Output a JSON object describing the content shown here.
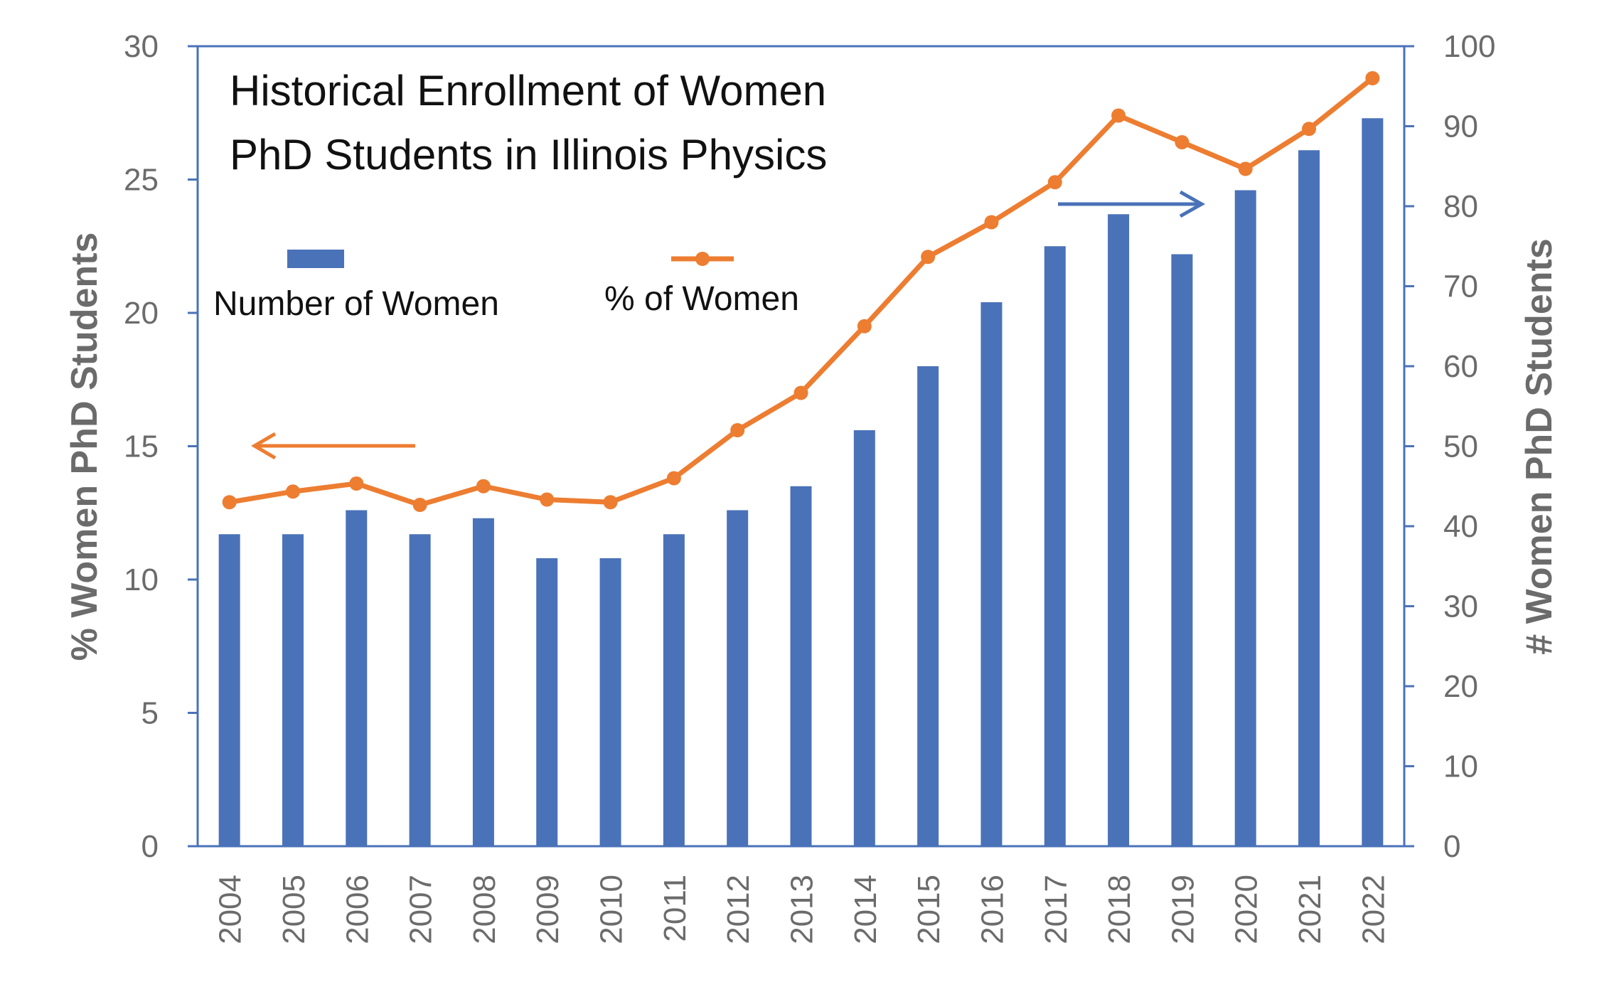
{
  "chart_data": {
    "type": "bar",
    "title_lines": [
      "Historical Enrollment of Women",
      "PhD Students in Illinois Physics"
    ],
    "categories": [
      "2004",
      "2005",
      "2006",
      "2007",
      "2008",
      "2009",
      "2010",
      "2011",
      "2012",
      "2013",
      "2014",
      "2015",
      "2016",
      "2017",
      "2018",
      "2019",
      "2020",
      "2021",
      "2022"
    ],
    "series": [
      {
        "name": "Number of Women",
        "type": "bar",
        "axis": "right",
        "color": "#4A72B8",
        "values": [
          39,
          39,
          42,
          39,
          41,
          36,
          36,
          39,
          42,
          45,
          52,
          60,
          68,
          75,
          79,
          74,
          82,
          87,
          91
        ]
      },
      {
        "name": "% of Women",
        "type": "line",
        "axis": "left",
        "color": "#ED7D31",
        "values": [
          12.9,
          13.3,
          13.6,
          12.8,
          13.5,
          13.0,
          12.9,
          13.8,
          15.6,
          17.0,
          19.5,
          22.1,
          23.4,
          24.9,
          27.4,
          26.4,
          25.4,
          26.9,
          28.8
        ]
      }
    ],
    "ylabel": "% Women PhD Students",
    "y2label": "# Women PhD Students",
    "ylim": [
      0,
      30
    ],
    "y2lim": [
      0,
      100
    ],
    "yticks": [
      "0",
      "5",
      "10",
      "15",
      "20",
      "25",
      "30"
    ],
    "y2ticks": [
      "0",
      "10",
      "20",
      "30",
      "40",
      "50",
      "60",
      "70",
      "80",
      "90",
      "100"
    ],
    "grid": false,
    "legend_placement": "top-left inside plot",
    "annotations": [
      "arrow pointing left to % axis",
      "arrow pointing right to # axis"
    ],
    "colors": {
      "frame": "#4A72B8",
      "bar": "#4A72B8",
      "line": "#ED7D31",
      "tick_text": "#6b6b6b"
    }
  }
}
